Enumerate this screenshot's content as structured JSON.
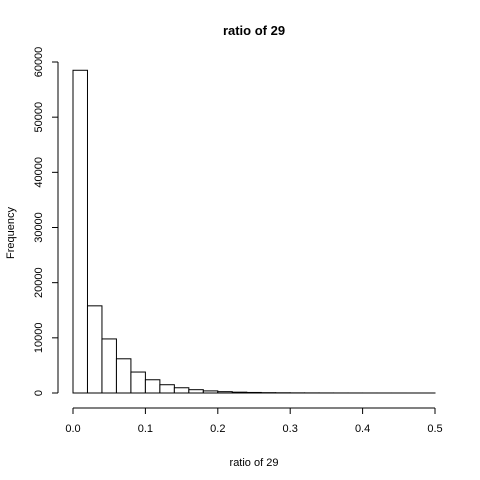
{
  "chart_data": {
    "type": "bar",
    "title": "ratio of 29",
    "xlabel": "ratio of 29",
    "ylabel": "Frequency",
    "bin_width": 0.02,
    "bin_starts": [
      0.0,
      0.02,
      0.04,
      0.06,
      0.08,
      0.1,
      0.12,
      0.14,
      0.16,
      0.18,
      0.2,
      0.22,
      0.24,
      0.26,
      0.28,
      0.3,
      0.32,
      0.34,
      0.36,
      0.38,
      0.4,
      0.42,
      0.44,
      0.46,
      0.48
    ],
    "values": [
      58500,
      15800,
      9800,
      6200,
      3800,
      2400,
      1500,
      950,
      600,
      380,
      240,
      150,
      100,
      60,
      40,
      25,
      18,
      12,
      8,
      6,
      4,
      3,
      2,
      1,
      1
    ],
    "xlim": [
      0,
      0.5
    ],
    "ylim": [
      0,
      60000
    ],
    "x_ticks": [
      "0.0",
      "0.1",
      "0.2",
      "0.3",
      "0.4",
      "0.5"
    ],
    "y_ticks": [
      "0",
      "10000",
      "20000",
      "30000",
      "40000",
      "50000",
      "60000"
    ],
    "grid": false,
    "legend": "none",
    "colors": {
      "bar_fill": "#ffffff",
      "bar_stroke": "#000000"
    }
  }
}
